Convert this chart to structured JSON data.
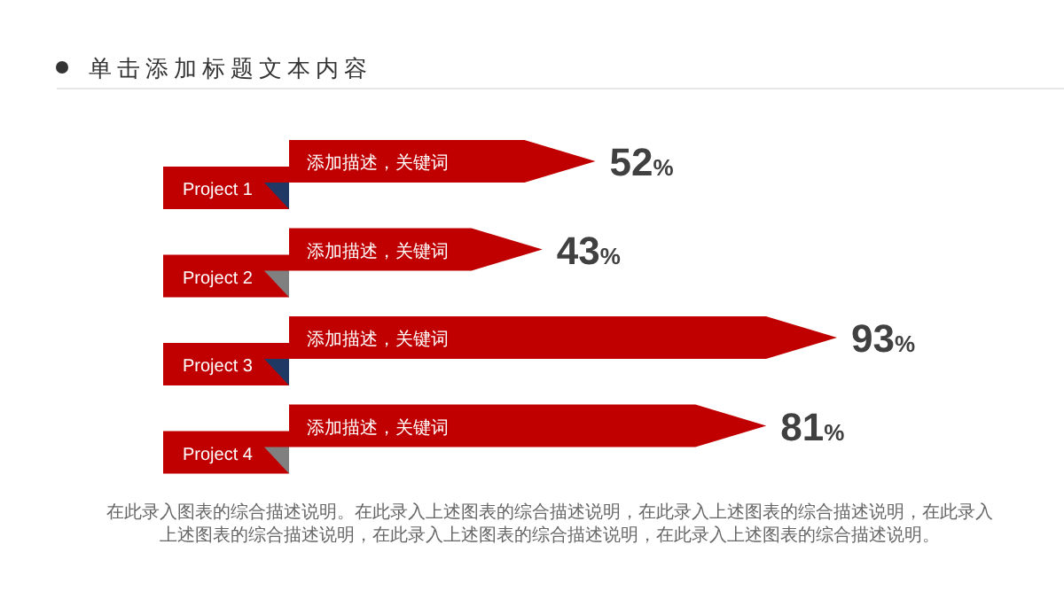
{
  "chart_data": {
    "type": "bar",
    "orientation": "horizontal",
    "title": "单击添加标题文本内容",
    "categories": [
      "Project 1",
      "Project 2",
      "Project 3",
      "Project 4"
    ],
    "values": [
      52,
      43,
      93,
      81
    ],
    "color": "#c00000",
    "data_labels": true,
    "value_labels": [
      "52%",
      "43%",
      "93%",
      "81%"
    ],
    "tick_labels": "y",
    "annotations": [
      {
        "text": "添加描述，关键词",
        "y": "Project 1"
      },
      {
        "text": "添加描述，关键词",
        "y": "Project 2"
      },
      {
        "text": "添加描述，关键词",
        "y": "Project 3"
      },
      {
        "text": "添加描述，关键词",
        "y": "Project 4"
      },
      "在此录入图表的综合描述说明。在此录入上述图表的综合描述说明，在此录入上述图表的综合描述说明，在此录入上述图表的综合描述说明，在此录入上述图表的综合描述说明，在此录入上述图表的综合描述说明。"
    ]
  }
}
